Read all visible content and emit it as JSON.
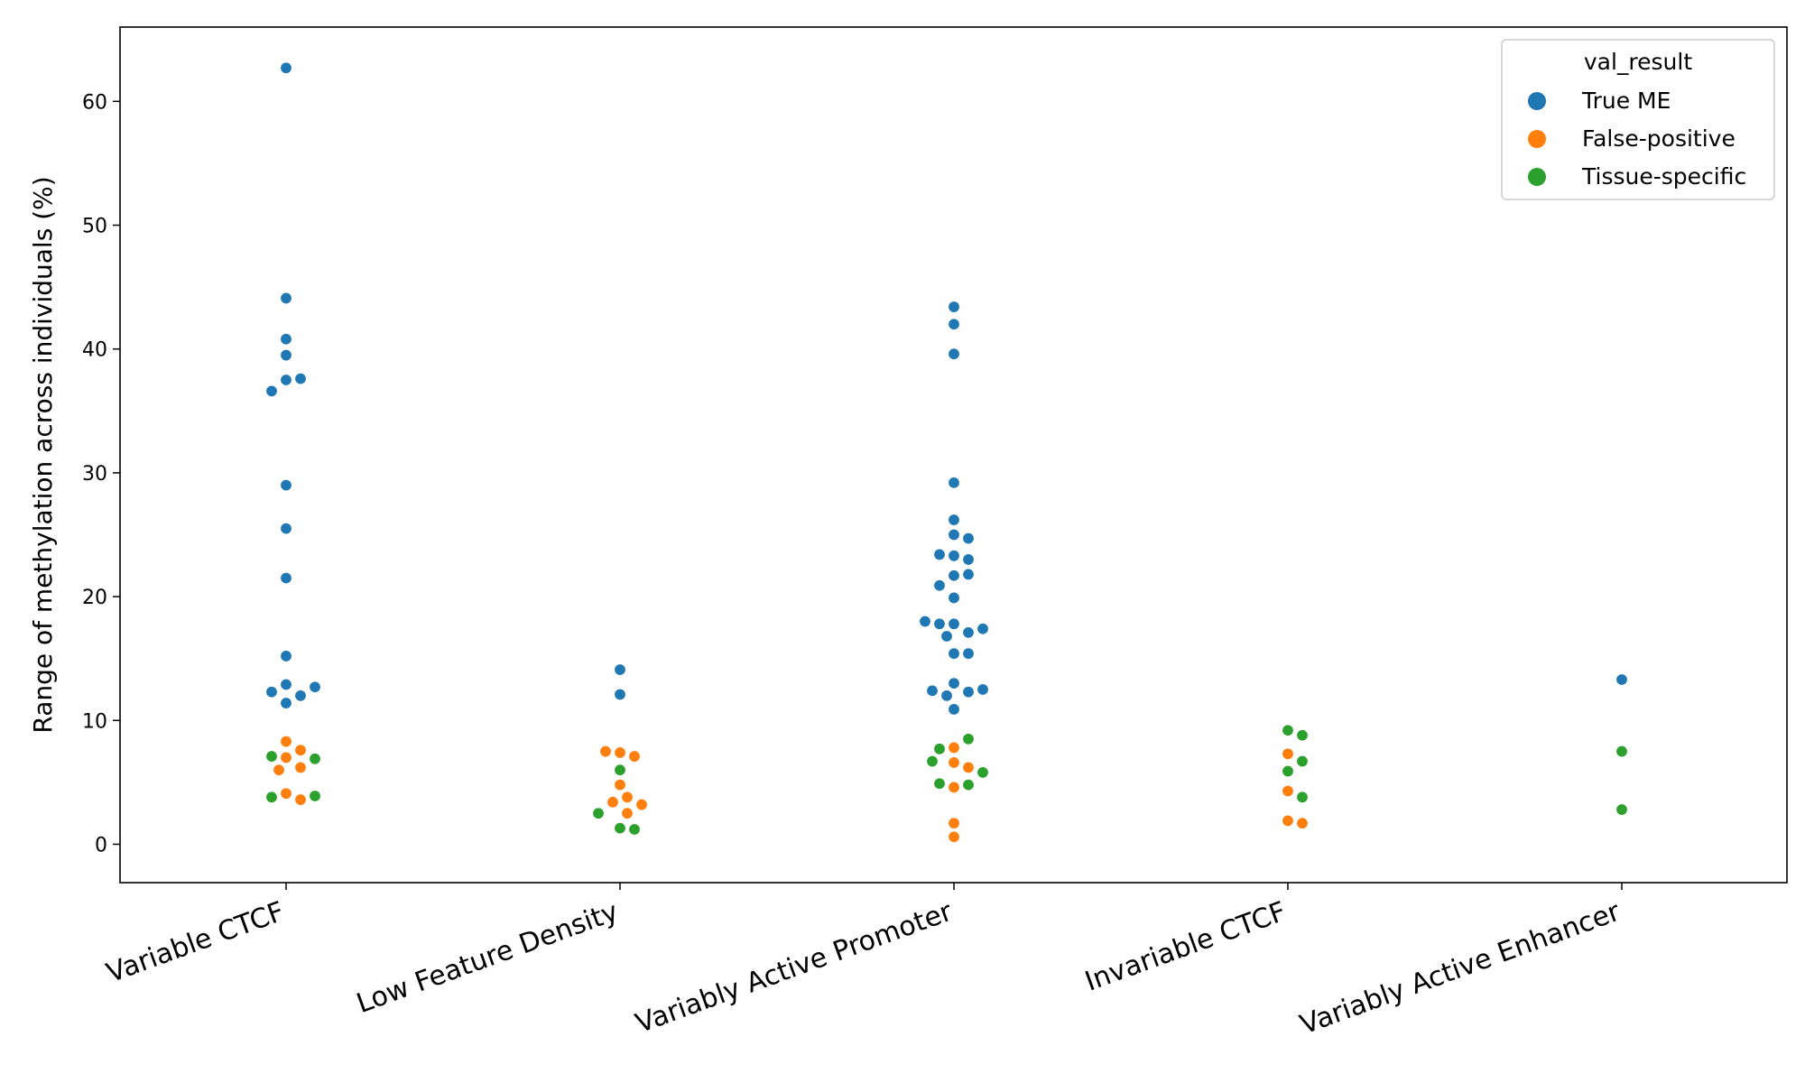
{
  "chart_data": {
    "type": "scatter",
    "ylabel": "Range of methylation across individuals (%)",
    "xlabel": "",
    "ylim": [
      -3.1,
      66
    ],
    "yticks": [
      0,
      10,
      20,
      30,
      40,
      50,
      60
    ],
    "categories": [
      "Variable CTCF",
      "Low Feature Density",
      "Variably Active Promoter",
      "Invariable CTCF",
      "Variably Active Enhancer"
    ],
    "legend": {
      "title": "val_result",
      "placement": "top-right"
    },
    "series": [
      {
        "name": "True ME",
        "color": "#1f77b4",
        "points": [
          [
            0,
            62.7
          ],
          [
            0,
            44.1
          ],
          [
            0,
            40.8
          ],
          [
            0,
            39.5
          ],
          [
            0,
            37.5
          ],
          [
            0,
            37.6
          ],
          [
            0,
            36.6
          ],
          [
            0,
            29.0
          ],
          [
            0,
            25.5
          ],
          [
            0,
            21.5
          ],
          [
            0,
            15.2
          ],
          [
            0,
            12.9
          ],
          [
            0,
            12.0
          ],
          [
            0,
            12.3
          ],
          [
            0,
            12.7
          ],
          [
            0,
            11.4
          ],
          [
            1,
            14.1
          ],
          [
            1,
            12.1
          ],
          [
            2,
            43.4
          ],
          [
            2,
            42.0
          ],
          [
            2,
            39.6
          ],
          [
            2,
            29.2
          ],
          [
            2,
            26.2
          ],
          [
            2,
            25.0
          ],
          [
            2,
            24.7
          ],
          [
            2,
            23.3
          ],
          [
            2,
            23.0
          ],
          [
            2,
            23.4
          ],
          [
            2,
            21.7
          ],
          [
            2,
            21.8
          ],
          [
            2,
            20.9
          ],
          [
            2,
            19.9
          ],
          [
            2,
            17.8
          ],
          [
            2,
            17.1
          ],
          [
            2,
            17.8
          ],
          [
            2,
            16.8
          ],
          [
            2,
            17.4
          ],
          [
            2,
            18.0
          ],
          [
            2,
            15.4
          ],
          [
            2,
            15.4
          ],
          [
            2,
            13.0
          ],
          [
            2,
            12.3
          ],
          [
            2,
            12.0
          ],
          [
            2,
            12.4
          ],
          [
            2,
            12.5
          ],
          [
            2,
            10.9
          ],
          [
            4,
            13.3
          ]
        ]
      },
      {
        "name": "False-positive",
        "color": "#ff7f0e",
        "points": [
          [
            0,
            8.3
          ],
          [
            0,
            7.6
          ],
          [
            0,
            7.0
          ],
          [
            0,
            6.2
          ],
          [
            0,
            6.0
          ],
          [
            0,
            4.1
          ],
          [
            0,
            3.6
          ],
          [
            1,
            7.4
          ],
          [
            1,
            7.1
          ],
          [
            1,
            7.5
          ],
          [
            1,
            4.8
          ],
          [
            1,
            3.8
          ],
          [
            1,
            3.4
          ],
          [
            1,
            3.2
          ],
          [
            1,
            2.5
          ],
          [
            2,
            7.8
          ],
          [
            2,
            6.6
          ],
          [
            2,
            6.2
          ],
          [
            2,
            4.6
          ],
          [
            2,
            1.7
          ],
          [
            2,
            0.6
          ],
          [
            3,
            7.3
          ],
          [
            3,
            4.3
          ],
          [
            3,
            1.9
          ],
          [
            3,
            1.7
          ]
        ]
      },
      {
        "name": "Tissue-specific",
        "color": "#2ca02c",
        "points": [
          [
            0,
            7.1
          ],
          [
            0,
            6.9
          ],
          [
            0,
            3.8
          ],
          [
            0,
            3.9
          ],
          [
            1,
            6.0
          ],
          [
            1,
            2.5
          ],
          [
            1,
            1.3
          ],
          [
            1,
            1.2
          ],
          [
            2,
            8.5
          ],
          [
            2,
            7.7
          ],
          [
            2,
            6.7
          ],
          [
            2,
            5.8
          ],
          [
            2,
            4.8
          ],
          [
            2,
            4.9
          ],
          [
            3,
            9.2
          ],
          [
            3,
            8.8
          ],
          [
            3,
            6.7
          ],
          [
            3,
            5.9
          ],
          [
            3,
            3.8
          ],
          [
            4,
            7.5
          ],
          [
            4,
            2.8
          ]
        ]
      }
    ]
  }
}
